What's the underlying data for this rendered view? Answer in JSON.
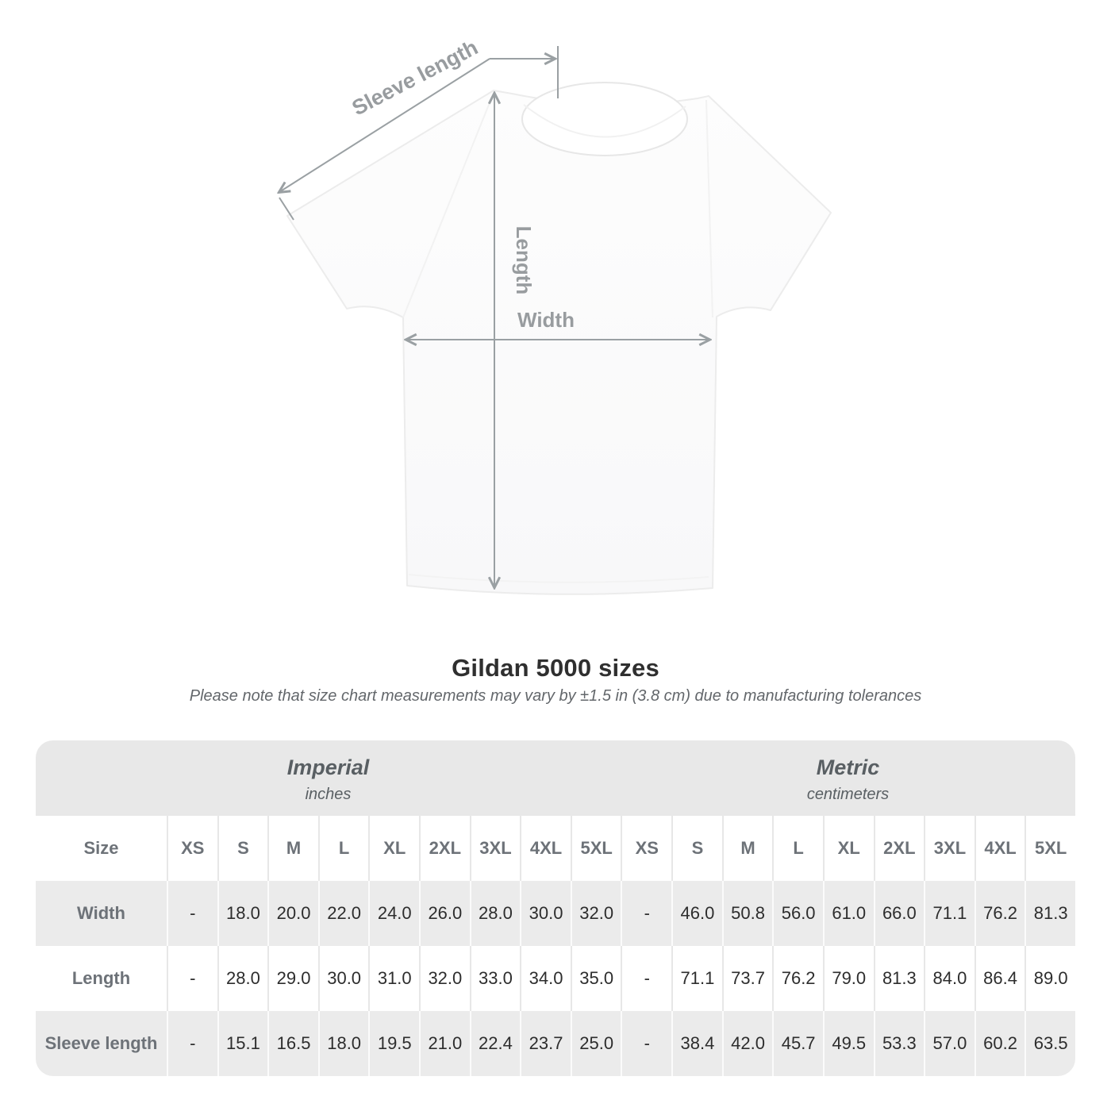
{
  "diagram": {
    "labels": {
      "sleeve_length": "Sleeve length",
      "length": "Length",
      "width": "Width"
    },
    "line_color": "#9aa0a3",
    "label_color": "#989c9f"
  },
  "title": "Gildan 5000 sizes",
  "subtitle": "Please note that size chart measurements may vary by ±1.5 in (3.8 cm) due to manufacturing tolerances",
  "table": {
    "unit_groups": [
      {
        "label": "Imperial",
        "sublabel": "inches"
      },
      {
        "label": "Metric",
        "sublabel": "centimeters"
      }
    ],
    "size_header": "Size",
    "sizes": [
      "XS",
      "S",
      "M",
      "L",
      "XL",
      "2XL",
      "3XL",
      "4XL",
      "5XL"
    ],
    "rows": [
      {
        "label": "Width",
        "imperial": [
          "-",
          "18.0",
          "20.0",
          "22.0",
          "24.0",
          "26.0",
          "28.0",
          "30.0",
          "32.0"
        ],
        "metric": [
          "-",
          "46.0",
          "50.8",
          "56.0",
          "61.0",
          "66.0",
          "71.1",
          "76.2",
          "81.3"
        ]
      },
      {
        "label": "Length",
        "imperial": [
          "-",
          "28.0",
          "29.0",
          "30.0",
          "31.0",
          "32.0",
          "33.0",
          "34.0",
          "35.0"
        ],
        "metric": [
          "-",
          "71.1",
          "73.7",
          "76.2",
          "79.0",
          "81.3",
          "84.0",
          "86.4",
          "89.0"
        ]
      },
      {
        "label": "Sleeve length",
        "imperial": [
          "-",
          "15.1",
          "16.5",
          "18.0",
          "19.5",
          "21.0",
          "22.4",
          "23.7",
          "25.0"
        ],
        "metric": [
          "-",
          "38.4",
          "42.0",
          "45.7",
          "49.5",
          "53.3",
          "57.0",
          "60.2",
          "63.5"
        ]
      }
    ]
  },
  "chart_data": {
    "type": "table",
    "title": "Gildan 5000 sizes",
    "note": "Please note that size chart measurements may vary by ±1.5 in (3.8 cm) due to manufacturing tolerances",
    "unit_groups": [
      "Imperial (inches)",
      "Metric (centimeters)"
    ],
    "columns": [
      "XS",
      "S",
      "M",
      "L",
      "XL",
      "2XL",
      "3XL",
      "4XL",
      "5XL"
    ],
    "rows": [
      {
        "measure": "Width",
        "imperial_inches": [
          null,
          18.0,
          20.0,
          22.0,
          24.0,
          26.0,
          28.0,
          30.0,
          32.0
        ],
        "metric_cm": [
          null,
          46.0,
          50.8,
          56.0,
          61.0,
          66.0,
          71.1,
          76.2,
          81.3
        ]
      },
      {
        "measure": "Length",
        "imperial_inches": [
          null,
          28.0,
          29.0,
          30.0,
          31.0,
          32.0,
          33.0,
          34.0,
          35.0
        ],
        "metric_cm": [
          null,
          71.1,
          73.7,
          76.2,
          79.0,
          81.3,
          84.0,
          86.4,
          89.0
        ]
      },
      {
        "measure": "Sleeve length",
        "imperial_inches": [
          null,
          15.1,
          16.5,
          18.0,
          19.5,
          21.0,
          22.4,
          23.7,
          25.0
        ],
        "metric_cm": [
          null,
          38.4,
          42.0,
          45.7,
          49.5,
          53.3,
          57.0,
          60.2,
          63.5
        ]
      }
    ]
  }
}
